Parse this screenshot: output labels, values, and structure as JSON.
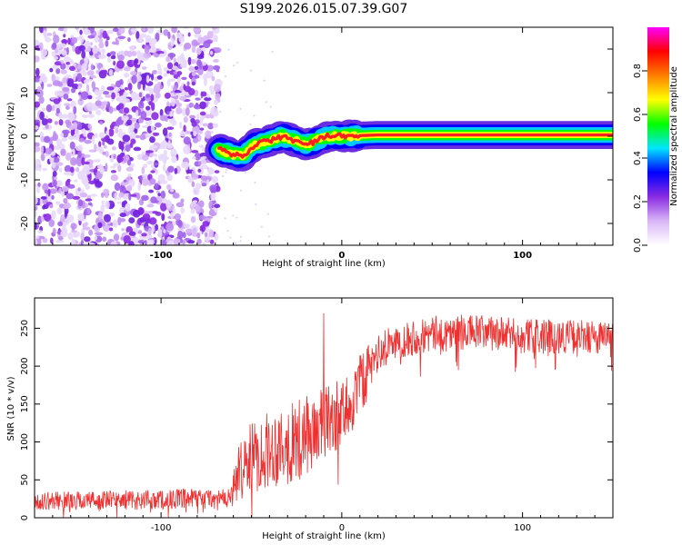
{
  "title": "S199.2026.015.07.39.G07",
  "spectrogram": {
    "type": "heatmap",
    "xlabel": "Height of straight line (km)",
    "ylabel": "Frequency (Hz)",
    "xlim": [
      -170,
      150
    ],
    "ylim": [
      -25,
      25
    ],
    "x_ticks": [
      -100,
      0,
      100
    ],
    "x_tick_labels": [
      "-100",
      "0",
      "100"
    ],
    "y_ticks": [
      20,
      10,
      0,
      -10,
      -20
    ],
    "y_tick_labels": [
      "20",
      "10",
      "0",
      "-10",
      "-20"
    ],
    "noise_region_x": [
      -170,
      -68
    ],
    "signal_start_x": -68,
    "signal_track": [
      [
        -68,
        -3
      ],
      [
        -62,
        -4
      ],
      [
        -55,
        -4.5
      ],
      [
        -48,
        -2
      ],
      [
        -40,
        -1
      ],
      [
        -33,
        0
      ],
      [
        -26,
        -1
      ],
      [
        -20,
        -2
      ],
      [
        -14,
        -1
      ],
      [
        -8,
        0
      ],
      [
        0,
        0
      ],
      [
        20,
        0.3
      ],
      [
        150,
        0.3
      ]
    ],
    "colorbar": {
      "label": "Normalized spectral amplitude",
      "range": [
        0.0,
        1.0
      ],
      "ticks": [
        0.0,
        0.2,
        0.4,
        0.6,
        0.8
      ],
      "tick_labels": [
        "0.0",
        "0.2",
        "0.4",
        "0.6",
        "0.8"
      ],
      "colors": [
        "#ffffff",
        "#d9b6f7",
        "#8a2be2",
        "#0000ff",
        "#00e5ff",
        "#00ff00",
        "#ffff00",
        "#ff7f00",
        "#ff0000",
        "#ff00ff"
      ]
    }
  },
  "snr_plot": {
    "type": "line",
    "xlabel": "Height of straight line (km)",
    "ylabel": "SNR (10 * v/v)",
    "xlim": [
      -170,
      150
    ],
    "ylim": [
      0,
      290
    ],
    "x_ticks": [
      -100,
      0,
      100
    ],
    "x_tick_labels": [
      "-100",
      "0",
      "100"
    ],
    "y_ticks": [
      0,
      50,
      100,
      150,
      200,
      250
    ],
    "y_tick_labels": [
      "0",
      "50",
      "100",
      "150",
      "200",
      "250"
    ],
    "line_color": "#f03030",
    "envelope": [
      [
        -170,
        22
      ],
      [
        -100,
        24
      ],
      [
        -80,
        25
      ],
      [
        -62,
        25
      ],
      [
        -55,
        70
      ],
      [
        -45,
        85
      ],
      [
        -35,
        95
      ],
      [
        -25,
        100
      ],
      [
        -15,
        115
      ],
      [
        -5,
        130
      ],
      [
        5,
        150
      ],
      [
        12,
        185
      ],
      [
        20,
        215
      ],
      [
        30,
        235
      ],
      [
        50,
        242
      ],
      [
        70,
        245
      ],
      [
        100,
        240
      ],
      [
        150,
        238
      ]
    ],
    "noise_amplitude": [
      [
        -170,
        12
      ],
      [
        -62,
        14
      ],
      [
        -55,
        45
      ],
      [
        -30,
        55
      ],
      [
        -10,
        50
      ],
      [
        10,
        40
      ],
      [
        20,
        25
      ],
      [
        150,
        22
      ]
    ],
    "spike": {
      "x": -10,
      "y": 270
    }
  }
}
